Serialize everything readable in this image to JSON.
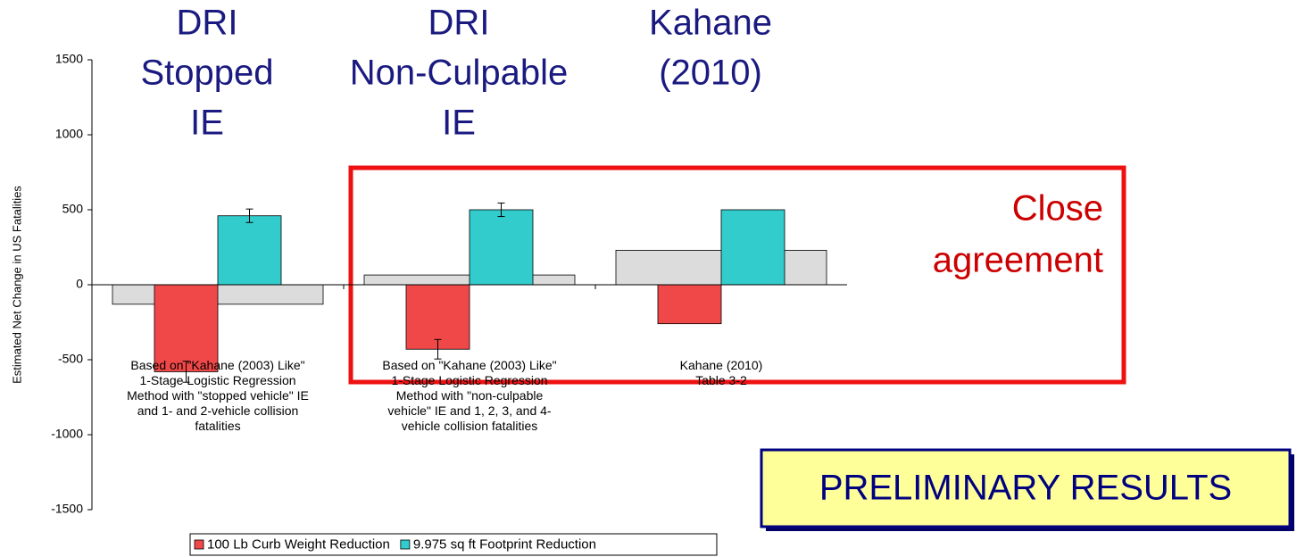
{
  "chart_data": {
    "type": "bar",
    "headers": [
      [
        "DRI",
        "Stopped",
        "IE"
      ],
      [
        "DRI",
        "Non-Culpable",
        "IE"
      ],
      [
        "Kahane",
        "(2010)"
      ]
    ],
    "y_label": "Estimated Net Change in US Fatalities",
    "categories": [
      "Based on \"Kahane (2003) Like\"\n1-Stage Logistic Regression\nMethod with \"stopped vehicle\" IE\nand 1- and 2-vehicle collision\nfatalities",
      "Based on \"Kahane (2003) Like\"\n1-Stage Logistic Regression\nMethod with \"non-culpable\nvehicle\" IE and 1, 2, 3, and 4-\nvehicle collision fatalities",
      "Kahane (2010)\nTable 3-2"
    ],
    "background_series": {
      "color": "#dcdcdc",
      "values": [
        -130,
        65,
        230
      ]
    },
    "series": [
      {
        "name": "100 Lb Curb Weight Reduction",
        "color": "#f04848",
        "values": [
          -580,
          -430,
          -260
        ],
        "errors": [
          70,
          65,
          null
        ]
      },
      {
        "name": "9.975 sq ft Footprint Reduction",
        "color": "#33cccc",
        "values": [
          460,
          500,
          500
        ],
        "errors": [
          45,
          45,
          null
        ]
      }
    ],
    "ylim": [
      -1500,
      1500
    ],
    "yticks": [
      -1500,
      -1000,
      -500,
      0,
      500,
      1000,
      1500
    ],
    "annotations": {
      "agreement": [
        "Close",
        "agreement"
      ],
      "status": "PRELIMINARY RESULTS"
    }
  }
}
